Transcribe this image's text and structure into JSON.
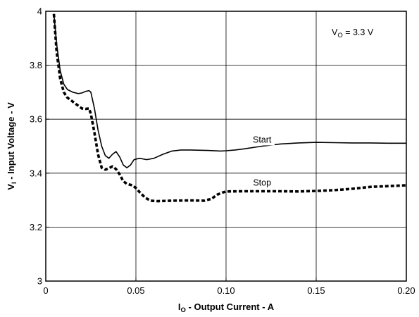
{
  "chart_data": {
    "type": "line",
    "xlabel": {
      "main": "I",
      "sub": "O",
      "rest": " - Output Current - A"
    },
    "ylabel": {
      "main": "V",
      "sub": "I",
      "rest": " - Input Voltage - V"
    },
    "xlim": [
      0,
      0.2
    ],
    "ylim": [
      3,
      4
    ],
    "x_ticks": [
      {
        "value": 0,
        "label": "0"
      },
      {
        "value": 0.05,
        "label": "0.05"
      },
      {
        "value": 0.1,
        "label": "0.10"
      },
      {
        "value": 0.15,
        "label": "0.15"
      },
      {
        "value": 0.2,
        "label": "0.20"
      }
    ],
    "y_ticks": [
      {
        "value": 3,
        "label": "3"
      },
      {
        "value": 3.2,
        "label": "3.2"
      },
      {
        "value": 3.4,
        "label": "3.4"
      },
      {
        "value": 3.6,
        "label": "3.6"
      },
      {
        "value": 3.8,
        "label": "3.8"
      },
      {
        "value": 4,
        "label": "4"
      }
    ],
    "grid": true,
    "annotation": {
      "main": "V",
      "sub": "O",
      "rest": " = 3.3 V"
    },
    "series": [
      {
        "name": "Start",
        "style": "solid",
        "label_at": {
          "x": 0.12,
          "y": 3.525
        },
        "points": [
          [
            0.0045,
            3.99
          ],
          [
            0.006,
            3.88
          ],
          [
            0.008,
            3.78
          ],
          [
            0.01,
            3.73
          ],
          [
            0.012,
            3.71
          ],
          [
            0.015,
            3.7
          ],
          [
            0.018,
            3.695
          ],
          [
            0.02,
            3.697
          ],
          [
            0.022,
            3.703
          ],
          [
            0.024,
            3.706
          ],
          [
            0.025,
            3.7
          ],
          [
            0.027,
            3.64
          ],
          [
            0.029,
            3.56
          ],
          [
            0.031,
            3.5
          ],
          [
            0.033,
            3.465
          ],
          [
            0.035,
            3.455
          ],
          [
            0.037,
            3.47
          ],
          [
            0.039,
            3.48
          ],
          [
            0.041,
            3.46
          ],
          [
            0.043,
            3.43
          ],
          [
            0.045,
            3.42
          ],
          [
            0.047,
            3.43
          ],
          [
            0.049,
            3.45
          ],
          [
            0.052,
            3.455
          ],
          [
            0.056,
            3.45
          ],
          [
            0.06,
            3.455
          ],
          [
            0.065,
            3.47
          ],
          [
            0.07,
            3.482
          ],
          [
            0.075,
            3.486
          ],
          [
            0.08,
            3.486
          ],
          [
            0.09,
            3.484
          ],
          [
            0.097,
            3.482
          ],
          [
            0.1,
            3.483
          ],
          [
            0.105,
            3.486
          ],
          [
            0.11,
            3.49
          ],
          [
            0.12,
            3.5
          ],
          [
            0.13,
            3.508
          ],
          [
            0.14,
            3.512
          ],
          [
            0.15,
            3.514
          ],
          [
            0.16,
            3.513
          ],
          [
            0.17,
            3.512
          ],
          [
            0.18,
            3.512
          ],
          [
            0.19,
            3.511
          ],
          [
            0.2,
            3.511
          ]
        ]
      },
      {
        "name": "Stop",
        "style": "dashed",
        "label_at": {
          "x": 0.12,
          "y": 3.365
        },
        "points": [
          [
            0.0045,
            3.99
          ],
          [
            0.006,
            3.85
          ],
          [
            0.008,
            3.75
          ],
          [
            0.01,
            3.7
          ],
          [
            0.012,
            3.68
          ],
          [
            0.015,
            3.665
          ],
          [
            0.018,
            3.65
          ],
          [
            0.02,
            3.64
          ],
          [
            0.022,
            3.638
          ],
          [
            0.024,
            3.64
          ],
          [
            0.025,
            3.62
          ],
          [
            0.027,
            3.55
          ],
          [
            0.029,
            3.47
          ],
          [
            0.031,
            3.42
          ],
          [
            0.033,
            3.413
          ],
          [
            0.035,
            3.418
          ],
          [
            0.037,
            3.425
          ],
          [
            0.039,
            3.415
          ],
          [
            0.041,
            3.395
          ],
          [
            0.043,
            3.37
          ],
          [
            0.045,
            3.36
          ],
          [
            0.048,
            3.355
          ],
          [
            0.05,
            3.345
          ],
          [
            0.052,
            3.33
          ],
          [
            0.055,
            3.31
          ],
          [
            0.058,
            3.298
          ],
          [
            0.062,
            3.296
          ],
          [
            0.07,
            3.298
          ],
          [
            0.08,
            3.299
          ],
          [
            0.088,
            3.298
          ],
          [
            0.092,
            3.305
          ],
          [
            0.095,
            3.32
          ],
          [
            0.098,
            3.328
          ],
          [
            0.1,
            3.332
          ],
          [
            0.11,
            3.333
          ],
          [
            0.12,
            3.333
          ],
          [
            0.13,
            3.333
          ],
          [
            0.14,
            3.332
          ],
          [
            0.15,
            3.334
          ],
          [
            0.16,
            3.337
          ],
          [
            0.17,
            3.342
          ],
          [
            0.18,
            3.349
          ],
          [
            0.19,
            3.352
          ],
          [
            0.2,
            3.355
          ]
        ]
      }
    ]
  }
}
